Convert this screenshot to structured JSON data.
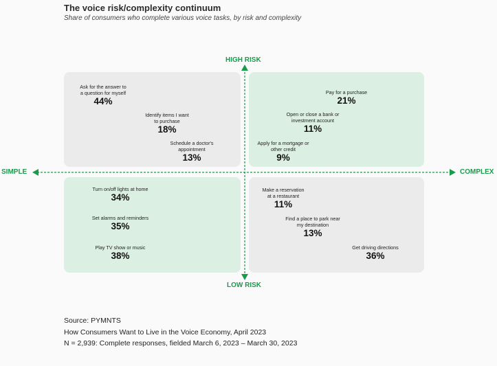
{
  "title": "The voice risk/complexity continuum",
  "subtitle": "Share of consumers who complete various voice tasks, by risk and complexity",
  "accent_color": "#1a9b4b",
  "axes": {
    "top": "HIGH RISK",
    "bottom": "LOW RISK",
    "left": "SIMPLE",
    "right": "COMPLEX"
  },
  "quadrants": {
    "high_risk_simple": {
      "color": "#ebebeb",
      "items": [
        {
          "label_1": "Ask for the answer to",
          "label_2": "a question for myself",
          "value": "44%"
        },
        {
          "label_1": "Identify items I want",
          "label_2": "to purchase",
          "value": "18%"
        },
        {
          "label_1": "Schedule a doctor's",
          "label_2": "appointment",
          "value": "13%"
        }
      ]
    },
    "high_risk_complex": {
      "color": "#dcefe3",
      "items": [
        {
          "label_1": "Pay for a purchase",
          "label_2": "",
          "value": "21%"
        },
        {
          "label_1": "Open or close a bank or",
          "label_2": "investment account",
          "value": "11%"
        },
        {
          "label_1": "Apply for a mortgage or",
          "label_2": "other credit",
          "value": "9%"
        }
      ]
    },
    "low_risk_simple": {
      "color": "#dcefe3",
      "items": [
        {
          "label_1": "Turn on/off lights at home",
          "label_2": "",
          "value": "34%"
        },
        {
          "label_1": "Set alarms and reminders",
          "label_2": "",
          "value": "35%"
        },
        {
          "label_1": "Play TV show or music",
          "label_2": "",
          "value": "38%"
        }
      ]
    },
    "low_risk_complex": {
      "color": "#ebebeb",
      "items": [
        {
          "label_1": "Make a reservation",
          "label_2": "at a restaurant",
          "value": "11%"
        },
        {
          "label_1": "Find a place to park near",
          "label_2": "my destination",
          "value": "13%"
        },
        {
          "label_1": "Get driving directions",
          "label_2": "",
          "value": "36%"
        }
      ]
    }
  },
  "source": {
    "line_1": "Source: PYMNTS",
    "line_2": "How Consumers Want to Live in the Voice Economy, April 2023",
    "line_3": "N = 2,939: Complete responses, fielded March 6, 2023 – March 30, 2023"
  }
}
